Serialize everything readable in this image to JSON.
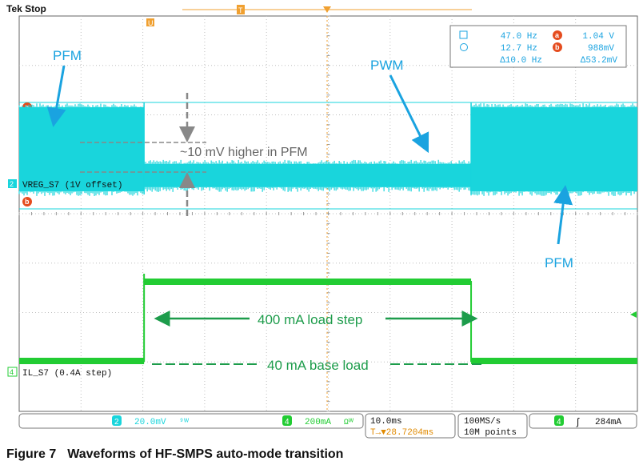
{
  "header": {
    "status": "Tek Stop"
  },
  "markers": {
    "trigger_pos": "T",
    "cursor_a": "a",
    "cursor_b": "b",
    "top_marker": "U"
  },
  "measure_box": {
    "row1": {
      "icon": "square-icon",
      "freq": "47.0 Hz",
      "cursor_label": "a",
      "value": "1.04 V"
    },
    "row2": {
      "icon": "circle-icon",
      "freq": "12.7 Hz",
      "cursor_label": "b",
      "value": "988mV"
    },
    "row3": {
      "freq_delta": "Δ10.0 Hz",
      "value_delta": "Δ53.2mV"
    }
  },
  "channels": {
    "ch2": {
      "number": "2",
      "label": "VREG_S7 (1V offset)",
      "scale": "20.0mV",
      "coupling": "⁹ᵂ"
    },
    "ch4": {
      "number": "4",
      "label": "IL_S7 (0.4A step)",
      "scale": "200mA",
      "coupling": "Ωᵂ"
    }
  },
  "timebase": {
    "scale": "10.0ms",
    "trigger_delay": "T→▼28.7204ms",
    "sample_rate": "100MS/s",
    "record": "10M points"
  },
  "trigger": {
    "channel": "4",
    "slope": "ʃ",
    "level": "284mA"
  },
  "annotations": {
    "pfm_left": "PFM",
    "pwm": "PWM",
    "pfm_right": "PFM",
    "diff": "~10 mV higher in PFM",
    "step": "400 mA load step",
    "base": "40 mA base load"
  },
  "colors": {
    "voltage": "#19d5dc",
    "current": "#22cc33",
    "annotation_blue": "#1aa3e0",
    "annotation_green": "#1d9c4b",
    "grid": "#bfbfbf",
    "cursor": "#f0a030"
  },
  "caption": {
    "number": "Figure 7",
    "text": "Waveforms of HF-SMPS auto-mode transition"
  },
  "chart_data": {
    "type": "line",
    "title": "",
    "xlabel": "",
    "ylabel": "",
    "x_scale_per_div": "10.0ms",
    "divisions": {
      "x": 10,
      "y": 8
    },
    "grid": true,
    "series": [
      {
        "name": "VREG_S7 (1V offset)",
        "unit": "mV",
        "segments": [
          {
            "mode": "PFM",
            "x_div": [
              0,
              2.02
            ],
            "ripple_band_mV": [
              1040,
              988
            ]
          },
          {
            "mode": "PWM",
            "x_div": [
              2.02,
              7.31
            ],
            "ripple_band_mV": [
              1010,
              990
            ]
          },
          {
            "mode": "PFM",
            "x_div": [
              7.31,
              10
            ],
            "ripple_band_mV": [
              1040,
              988
            ]
          }
        ]
      },
      {
        "name": "IL_S7 (0.4A step)",
        "unit": "mA",
        "segments": [
          {
            "level_mA": 40,
            "x_div": [
              0,
              2.02
            ]
          },
          {
            "level_mA": 440,
            "x_div": [
              2.02,
              7.31
            ]
          },
          {
            "level_mA": 40,
            "x_div": [
              7.31,
              10
            ]
          }
        ]
      }
    ]
  }
}
